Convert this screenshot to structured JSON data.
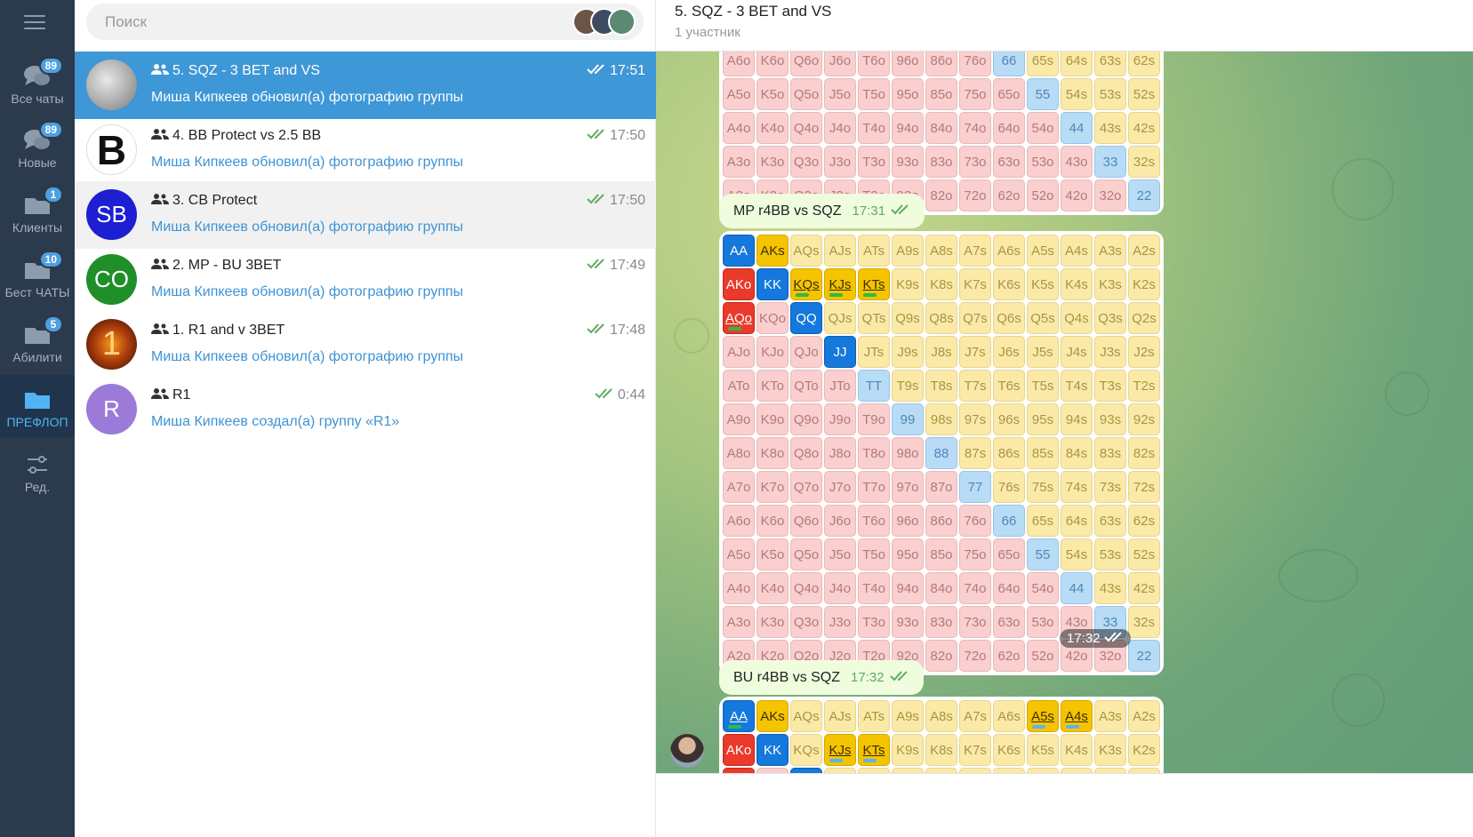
{
  "folders": [
    {
      "label": "Все чаты",
      "badge": "89",
      "icon": "chat-bubbles-icon"
    },
    {
      "label": "Новые",
      "badge": "89",
      "icon": "chat-bubbles-icon"
    },
    {
      "label": "Клиенты",
      "badge": "1",
      "icon": "folder-icon"
    },
    {
      "label": "Бест ЧАТЫ",
      "badge": "10",
      "icon": "folder-icon"
    },
    {
      "label": "Абилити",
      "badge": "5",
      "icon": "folder-icon"
    },
    {
      "label": "ПРЕФЛОП",
      "badge": "",
      "icon": "folder-icon"
    },
    {
      "label": "Ред.",
      "badge": "",
      "icon": "sliders-icon"
    }
  ],
  "search": {
    "placeholder": "Поиск"
  },
  "chats": [
    {
      "title": "5. SQZ - 3 BET and VS",
      "time": "17:51",
      "preview": "Миша Кипкеев обновил(а) фотографию группы",
      "avatar_text": "",
      "avatar_color": "#7a7a7a"
    },
    {
      "title": "4. BB Protect vs 2.5 BB",
      "time": "17:50",
      "preview": "Миша Кипкеев обновил(а) фотографию группы",
      "avatar_text": "B",
      "avatar_color": "#1a1a1a"
    },
    {
      "title": "3. CB Protect",
      "time": "17:50",
      "preview": "Миша Кипкеев обновил(а) фотографию группы",
      "avatar_text": "SB",
      "avatar_color": "#1e1ed2"
    },
    {
      "title": "2. MP - BU 3BET",
      "time": "17:49",
      "preview": "Миша Кипкеев обновил(а) фотографию группы",
      "avatar_text": "CO",
      "avatar_color": "#1f8f2a"
    },
    {
      "title": "1. R1 and v 3BET",
      "time": "17:48",
      "preview": "Миша Кипкеев обновил(а) фотографию группы",
      "avatar_text": "1",
      "avatar_color": "#9a3a0c"
    },
    {
      "title": "R1",
      "time": "0:44",
      "preview": "Миша Кипкеев создал(а) группу «R1»",
      "avatar_text": "R",
      "avatar_color": "#9b7ad8"
    }
  ],
  "header": {
    "title": "5. SQZ - 3 BET and VS",
    "subtitle": "1 участник"
  },
  "messages": [
    {
      "text": "MP r4BB vs SQZ",
      "time": "17:31"
    },
    {
      "text": "BU r4BB vs SQZ",
      "time": "17:32"
    }
  ],
  "image_time": "17:32",
  "ranks": [
    "A",
    "K",
    "Q",
    "J",
    "T",
    "9",
    "8",
    "7",
    "6",
    "5",
    "4",
    "3",
    "2"
  ],
  "colors": {
    "accent": "#3e97d6",
    "rail": "#2b3a4c",
    "raise_yellow": "#f5c400",
    "raise_blue": "#1478dd",
    "raise_red": "#ea3a2c"
  },
  "range_styles": {
    "mp": {
      "AA": "B",
      "AKs": "Y",
      "AKo": "R",
      "KK": "B",
      "KQs": "Y g",
      "KJs": "Y g",
      "KTs": "Y g",
      "AQo": "R g",
      "QQ": "B",
      "JJ": "B",
      "TT": "lb",
      "99": "lb",
      "88": "lb",
      "77": "lb",
      "66": "lb",
      "55": "lb",
      "44": "lb",
      "33": "lb",
      "22": "lb"
    },
    "bu": {
      "AA": "B g",
      "AKs": "Y",
      "AKo": "R",
      "KK": "B",
      "KJs": "Y bl",
      "KTs": "Y bl",
      "A5s": "Y bl",
      "A4s": "Y bl",
      "AQo": "R",
      "QQ": "B",
      "JJ": "B",
      "TT": "lb",
      "99": "lb",
      "88": "lb",
      "77": "lb",
      "66": "lb",
      "55": "lb",
      "44": "lb",
      "33": "lb",
      "22": "lb"
    }
  }
}
